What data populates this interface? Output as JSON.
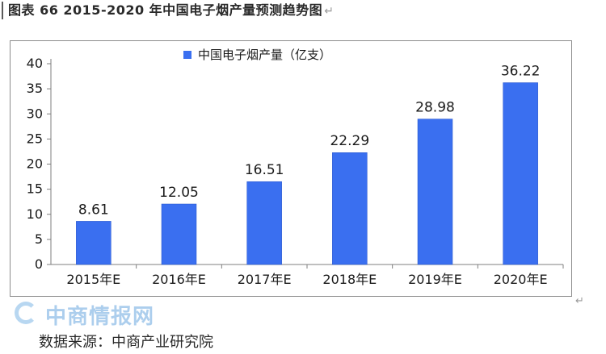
{
  "caption": {
    "text": "图表 66   2015-2020 年中国电子烟产量预测趋势图",
    "para_mark": "↵"
  },
  "frame_para_mark": "↵",
  "watermark": {
    "text": "中商情报网"
  },
  "source": {
    "text": "数据来源：中商产业研究院"
  },
  "colors": {
    "bar": "#3a6ff0",
    "bar_edge": "#2452c8",
    "axis": "#7f7f7f",
    "text": "#1a1a1a"
  },
  "chart_data": {
    "type": "bar",
    "categories": [
      "2015年E",
      "2016年E",
      "2017年E",
      "2018年E",
      "2019年E",
      "2020年E"
    ],
    "series": [
      {
        "name": "中国电子烟产量（亿支）",
        "values": [
          8.61,
          12.05,
          16.51,
          22.29,
          28.98,
          36.22
        ]
      }
    ],
    "data_labels": [
      "8.61",
      "12.05",
      "16.51",
      "22.29",
      "28.98",
      "36.22"
    ],
    "y_ticks": [
      "0",
      "5",
      "10",
      "15",
      "20",
      "25",
      "30",
      "35",
      "40"
    ],
    "ylim": [
      0,
      40
    ],
    "grid": false,
    "legend_position": "top-center",
    "title": "",
    "xlabel": "",
    "ylabel": ""
  }
}
